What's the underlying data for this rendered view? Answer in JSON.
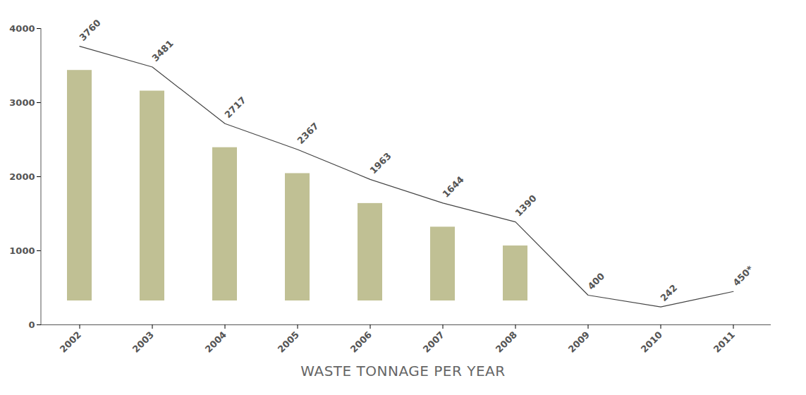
{
  "chart_data": {
    "type": "line",
    "title": "WASTE TONNAGE PER YEAR",
    "categories": [
      "2002",
      "2003",
      "2004",
      "2005",
      "2006",
      "2007",
      "2008",
      "2009",
      "2010",
      "2011"
    ],
    "values": [
      3760,
      3481,
      2717,
      2367,
      1963,
      1644,
      1390,
      400,
      242,
      450
    ],
    "value_labels": [
      "3760",
      "3481",
      "2717",
      "2367",
      "1963",
      "1644",
      "1390",
      "400",
      "242",
      "450*"
    ],
    "color": "#444444",
    "ylim": [
      0,
      4000
    ],
    "yticks": [
      0,
      1000,
      2000,
      3000,
      4000
    ],
    "grid": false,
    "data_labels": true
  }
}
